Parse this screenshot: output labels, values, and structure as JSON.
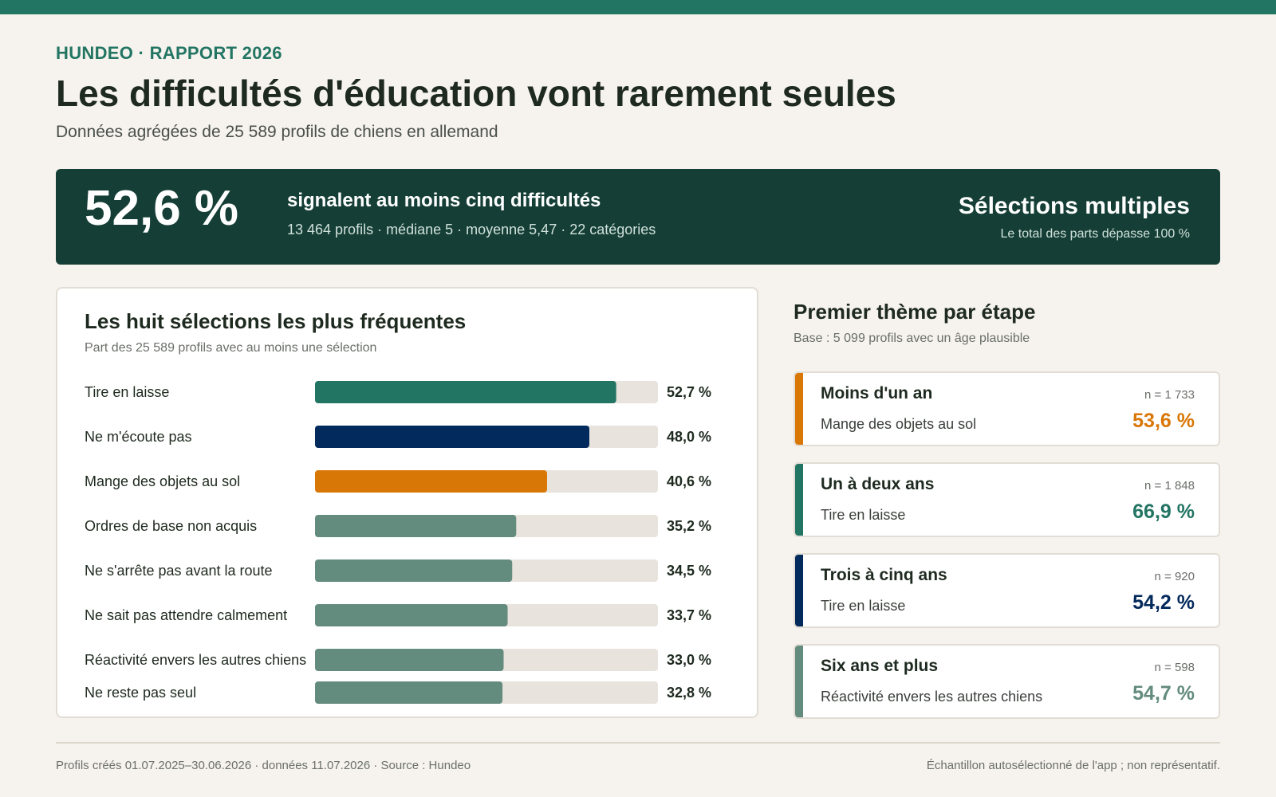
{
  "header": {
    "kicker": "HUNDEO · RAPPORT 2026",
    "title": "Les difficultés d'éducation vont rarement seules",
    "subtitle": "Données agrégées de 25 589 profils de chiens en allemand"
  },
  "banner": {
    "big_value": "52,6 %",
    "headline": "signalent au moins cinq difficultés",
    "stats": "13 464 profils · médiane 5 · moyenne 5,47 · 22 catégories",
    "right_title": "Sélections multiples",
    "right_sub": "Le total des parts dépasse 100 %"
  },
  "chart_data": {
    "type": "bar",
    "orientation": "horizontal",
    "title": "Les huit sélections les plus fréquentes",
    "subtitle": "Part des 25 589 profils avec au moins une sélection",
    "categories": [
      "Tire en laisse",
      "Ne m'écoute pas",
      "Mange des objets au sol",
      "Ordres de base non acquis",
      "Ne s'arrête pas avant la route",
      "Ne sait pas attendre calmement",
      "Réactivité envers les autres chiens",
      "Ne reste pas seul"
    ],
    "values": [
      52.7,
      48.0,
      40.6,
      35.2,
      34.5,
      33.7,
      33.0,
      32.8
    ],
    "value_labels": [
      "52,7 %",
      "48,0 %",
      "40,6 %",
      "35,2 %",
      "34,5 %",
      "33,7 %",
      "33,0 %",
      "32,8 %"
    ],
    "colors": [
      "#237563",
      "#032a5c",
      "#d97706",
      "#638b7e",
      "#638b7e",
      "#638b7e",
      "#638b7e",
      "#638b7e"
    ],
    "track_color": "#e8e3dc",
    "xlim": [
      0,
      60
    ],
    "grid": false,
    "legend": "none"
  },
  "stages": {
    "title": "Premier thème par étape",
    "subtitle": "Base : 5 099 profils avec un âge plausible",
    "items": [
      {
        "name": "Moins d'un an",
        "n": "n = 1 733",
        "topic": "Mange des objets au sol",
        "value": "53,6 %",
        "color": "#d97706"
      },
      {
        "name": "Un à deux ans",
        "n": "n = 1 848",
        "topic": "Tire en laisse",
        "value": "66,9 %",
        "color": "#237563"
      },
      {
        "name": "Trois à cinq ans",
        "n": "n = 920",
        "topic": "Tire en laisse",
        "value": "54,2 %",
        "color": "#032a5c"
      },
      {
        "name": "Six ans et plus",
        "n": "n = 598",
        "topic": "Réactivité envers les autres chiens",
        "value": "54,7 %",
        "color": "#638b7e"
      }
    ]
  },
  "footer": {
    "left": "Profils créés 01.07.2025–30.06.2026 · données 11.07.2026 · Source : Hundeo",
    "right": "Échantillon autosélectionné de l'app ; non représentatif."
  }
}
